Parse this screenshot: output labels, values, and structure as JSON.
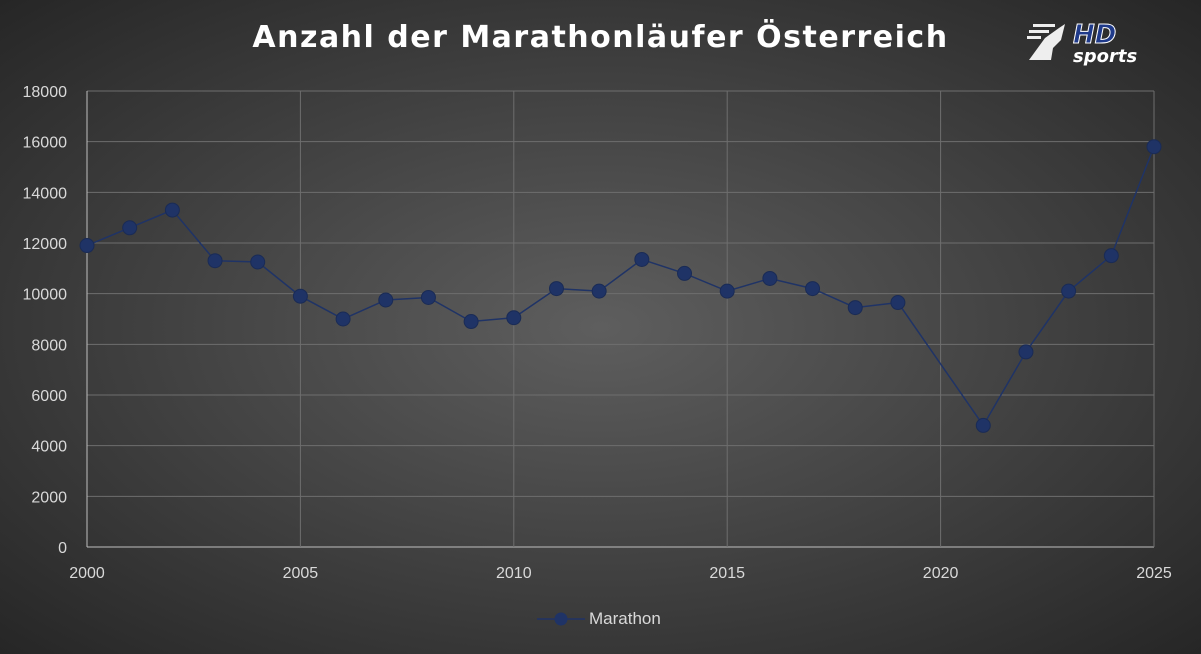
{
  "chart_data": {
    "type": "line",
    "title": "Anzahl der Marathonläufer Österreich",
    "x": [
      2000,
      2001,
      2002,
      2003,
      2004,
      2005,
      2006,
      2007,
      2008,
      2009,
      2010,
      2011,
      2012,
      2013,
      2014,
      2015,
      2016,
      2017,
      2018,
      2019,
      2021,
      2022,
      2023,
      2024,
      2025
    ],
    "series": [
      {
        "name": "Marathon",
        "values": [
          11900,
          12600,
          13300,
          11300,
          11250,
          9900,
          9000,
          9750,
          9850,
          8900,
          9050,
          10200,
          10100,
          11350,
          10800,
          10100,
          10600,
          10200,
          9450,
          9650,
          4800,
          7700,
          10100,
          11500,
          15800
        ],
        "color": "#1f3366"
      }
    ],
    "xlim": [
      2000,
      2025
    ],
    "ylim": [
      0,
      18000
    ],
    "x_ticks": [
      2000,
      2005,
      2010,
      2015,
      2020,
      2025
    ],
    "y_ticks": [
      0,
      2000,
      4000,
      6000,
      8000,
      10000,
      12000,
      14000,
      16000,
      18000
    ],
    "grid": true,
    "legend": "bottom",
    "xlabel": "",
    "ylabel": ""
  },
  "logo": {
    "text_top": "HD",
    "text_bottom": "sports"
  }
}
